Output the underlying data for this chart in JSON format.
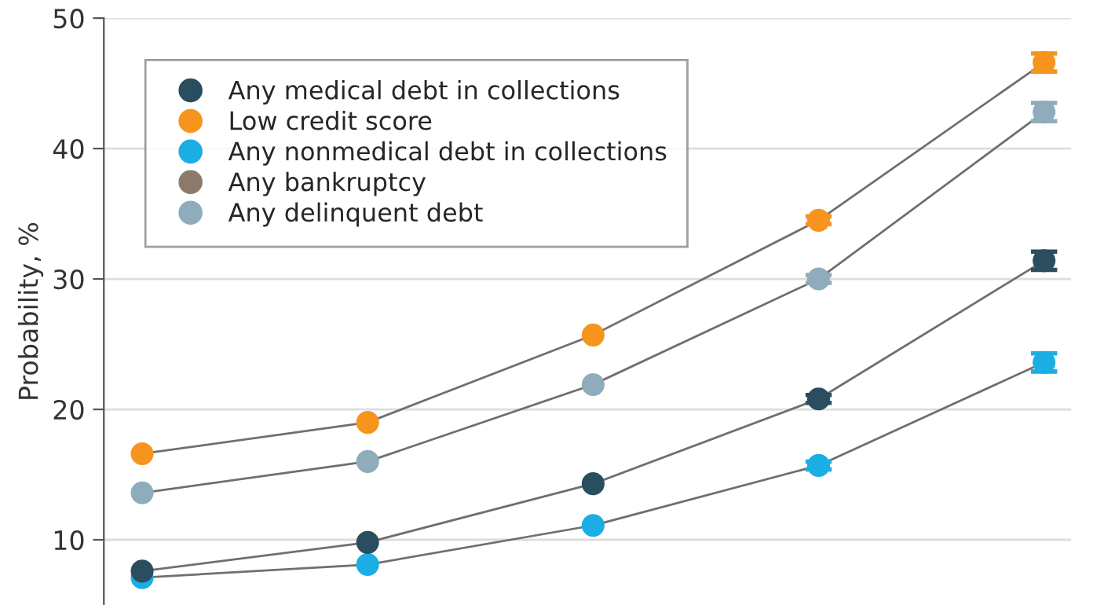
{
  "chart_data": {
    "type": "line",
    "ylabel": "Probability, %",
    "categories": [
      null,
      null,
      null,
      null,
      null
    ],
    "series": [
      {
        "name": "Any medical debt in collections",
        "color": "#2a4d5f",
        "values": [
          7.6,
          9.8,
          14.3,
          20.8,
          31.4
        ],
        "errors": [
          null,
          null,
          null,
          0.3,
          0.7
        ]
      },
      {
        "name": "Low credit score",
        "color": "#f7941d",
        "values": [
          16.6,
          19.0,
          25.7,
          34.5,
          46.6
        ],
        "errors": [
          null,
          null,
          null,
          0.3,
          0.7
        ]
      },
      {
        "name": "Any nonmedical debt in collections",
        "color": "#1aaee5",
        "values": [
          7.1,
          8.1,
          11.1,
          15.7,
          23.6
        ],
        "errors": [
          null,
          null,
          null,
          0.3,
          0.7
        ]
      },
      {
        "name": "Any bankruptcy",
        "color": "#8c7b6b",
        "values": [
          null,
          null,
          null,
          null,
          null
        ]
      },
      {
        "name": "Any delinquent debt",
        "color": "#8eacbb",
        "values": [
          13.6,
          16.0,
          21.9,
          30.0,
          42.8
        ],
        "errors": [
          null,
          null,
          null,
          0.3,
          0.7
        ]
      }
    ],
    "ylim": [
      5,
      50
    ],
    "yticks": [
      10,
      20,
      30,
      40,
      50
    ],
    "grid": "y",
    "legend": "top left",
    "marker": "circle",
    "tick_labels": "y"
  }
}
